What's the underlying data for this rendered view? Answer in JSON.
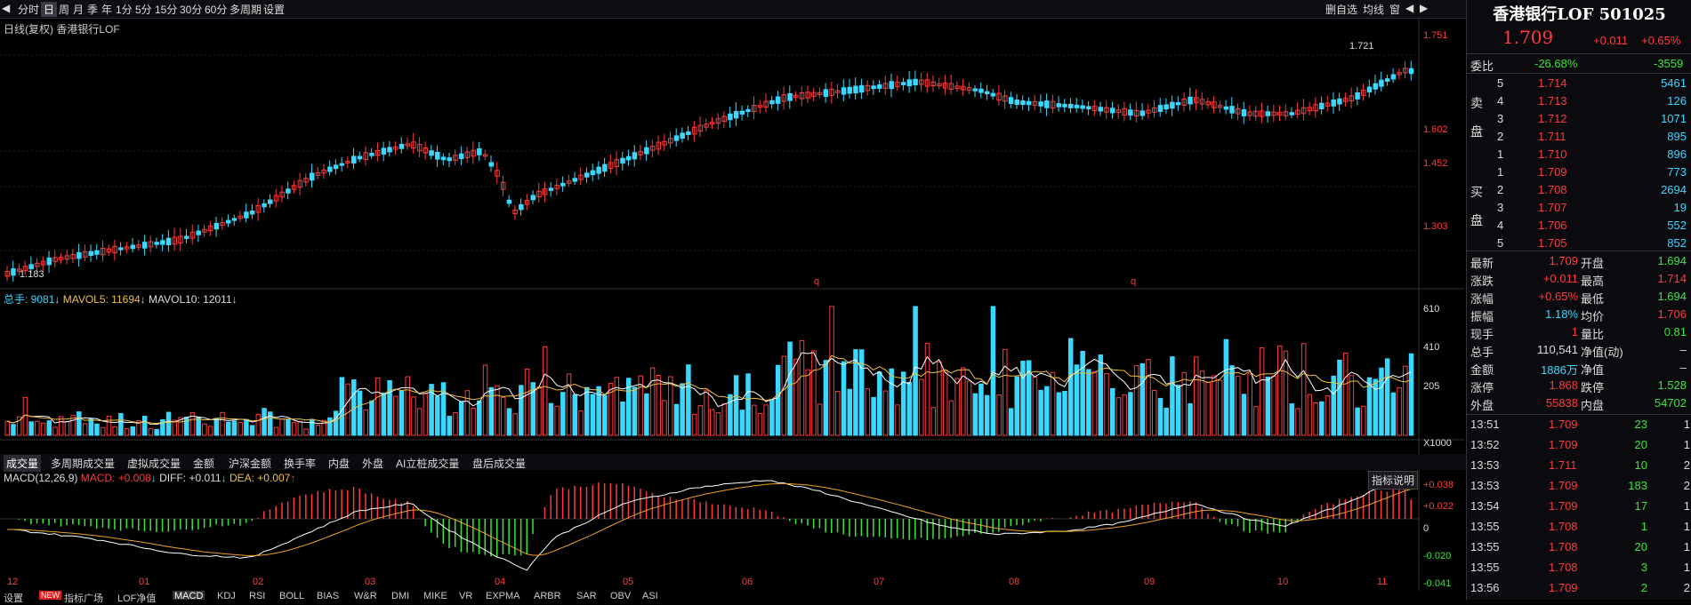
{
  "toolbar": {
    "items": [
      "分时",
      "日",
      "周",
      "月",
      "季",
      "年",
      "1分",
      "5分",
      "15分",
      "30分",
      "60分",
      "多周期",
      "设置"
    ],
    "active": "日",
    "right": [
      "删自选",
      "均线",
      "窗"
    ]
  },
  "chart": {
    "subtitle": "日线(复权) 香港银行LOF",
    "y_labels": [
      "1.751",
      "1.602",
      "1.452",
      "1.303"
    ],
    "high_label": "1.721",
    "low_label": "1.183",
    "q_markers": [
      "q",
      "q"
    ]
  },
  "volume": {
    "legend": {
      "total": "总手: 9081",
      "ma5": "MAVOL5: 11694",
      "ma10": "MAVOL10: 12011"
    },
    "y_labels": [
      "610",
      "410",
      "205",
      "X1000"
    ]
  },
  "vol_tabs": [
    "成交量",
    "多周期成交量",
    "虚拟成交量",
    "金额",
    "沪深金额",
    "换手率",
    "内盘",
    "外盘",
    "AI立桩成交量",
    "盘后成交量"
  ],
  "macd": {
    "legend": {
      "name": "MACD(12,26,9)",
      "macd": "MACD: +0.008",
      "diff": "DIFF: +0.011",
      "dea": "DEA: +0.007"
    },
    "button": "指标说明",
    "y_labels": [
      "+0.038",
      "+0.022",
      "0",
      "-0.020",
      "-0.041"
    ]
  },
  "months": [
    "12",
    "01",
    "02",
    "03",
    "04",
    "05",
    "06",
    "07",
    "08",
    "09",
    "10",
    "11"
  ],
  "bottom_tabs": [
    "设置",
    "NEW",
    "指标广场",
    "LOF净值",
    "MACD",
    "KDJ",
    "RSI",
    "BOLL",
    "BIAS",
    "W&R",
    "DMI",
    "MIKE",
    "VR",
    "EXPMA",
    "ARBR",
    "SAR",
    "OBV",
    "ASI"
  ],
  "panel": {
    "title": "香港银行LOF 501025",
    "price": "1.709",
    "change": "+0.011",
    "pct": "+0.65%",
    "wb": {
      "label": "委比",
      "pct": "-26.68%",
      "diff": "-3559"
    },
    "asks": [
      [
        "5",
        "1.714",
        "5461"
      ],
      [
        "4",
        "1.713",
        "126"
      ],
      [
        "3",
        "1.712",
        "1071"
      ],
      [
        "2",
        "1.711",
        "895"
      ],
      [
        "1",
        "1.710",
        "896"
      ]
    ],
    "bids": [
      [
        "1",
        "1.709",
        "773"
      ],
      [
        "2",
        "1.708",
        "2694"
      ],
      [
        "3",
        "1.707",
        "19"
      ],
      [
        "4",
        "1.706",
        "552"
      ],
      [
        "5",
        "1.705",
        "852"
      ]
    ],
    "ask_side": [
      "卖",
      "盘"
    ],
    "bid_side": [
      "买",
      "盘"
    ],
    "stats": [
      [
        "最新",
        "1.709",
        "开盘",
        "1.694"
      ],
      [
        "涨跌",
        "+0.011",
        "最高",
        "1.714"
      ],
      [
        "涨幅",
        "+0.65%",
        "最低",
        "1.694"
      ],
      [
        "振幅",
        "1.18%",
        "均价",
        "1.706"
      ],
      [
        "现手",
        "1",
        "量比",
        "0.81"
      ],
      [
        "总手",
        "110,541",
        "净值(动)",
        "–"
      ],
      [
        "金额",
        "1886万",
        "净值",
        "–"
      ],
      [
        "涨停",
        "1.868",
        "跌停",
        "1.528"
      ],
      [
        "外盘",
        "55838",
        "内盘",
        "54702"
      ]
    ],
    "ticks": [
      [
        "13:51",
        "1.709",
        "23",
        "1"
      ],
      [
        "13:52",
        "1.709",
        "20",
        "1"
      ],
      [
        "13:53",
        "1.711",
        "10",
        "2"
      ],
      [
        "13:53",
        "1.709",
        "183",
        "2"
      ],
      [
        "13:54",
        "1.709",
        "17",
        "1"
      ],
      [
        "13:55",
        "1.708",
        "1",
        "1"
      ],
      [
        "13:55",
        "1.708",
        "20",
        "1"
      ],
      [
        "13:55",
        "1.708",
        "3",
        "1"
      ],
      [
        "13:56",
        "1.709",
        "2",
        "2"
      ]
    ]
  }
}
